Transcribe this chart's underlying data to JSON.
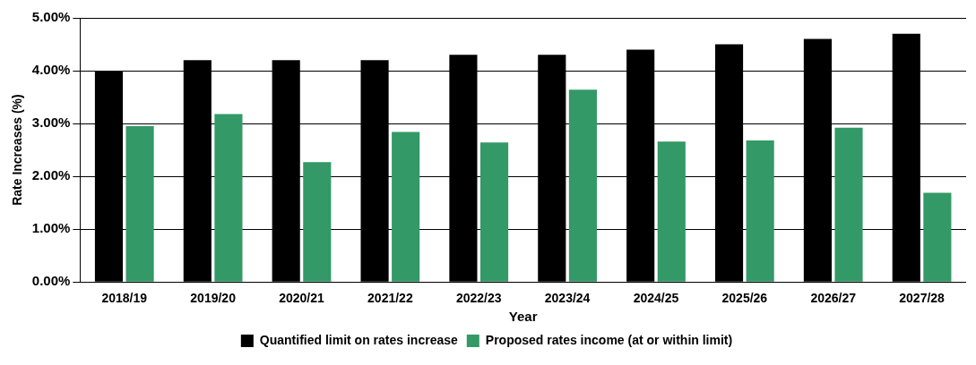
{
  "chart_data": {
    "type": "bar",
    "xlabel": "Year",
    "ylabel": "Rate Increases (%)",
    "categories": [
      "2018/19",
      "2019/20",
      "2020/21",
      "2021/22",
      "2022/23",
      "2023/24",
      "2024/25",
      "2025/26",
      "2026/27",
      "2027/28"
    ],
    "series": [
      {
        "name": "Quantified limit on rates increase",
        "color": "#000000",
        "values": [
          4.0,
          4.2,
          4.2,
          4.2,
          4.3,
          4.3,
          4.4,
          4.5,
          4.6,
          4.7
        ]
      },
      {
        "name": "Proposed rates income (at or within limit)",
        "color": "#339966",
        "values": [
          2.95,
          3.18,
          2.27,
          2.84,
          2.64,
          3.64,
          2.66,
          2.68,
          2.92,
          1.69
        ]
      }
    ],
    "ylim": [
      0,
      5
    ],
    "yticks": [
      {
        "value": 0,
        "label": "0.00%"
      },
      {
        "value": 1,
        "label": "1.00%"
      },
      {
        "value": 2,
        "label": "2.00%"
      },
      {
        "value": 3,
        "label": "3.00%"
      },
      {
        "value": 4,
        "label": "4.00%"
      },
      {
        "value": 5,
        "label": "5.00%"
      }
    ],
    "grid": "y",
    "legend": "bottom"
  }
}
